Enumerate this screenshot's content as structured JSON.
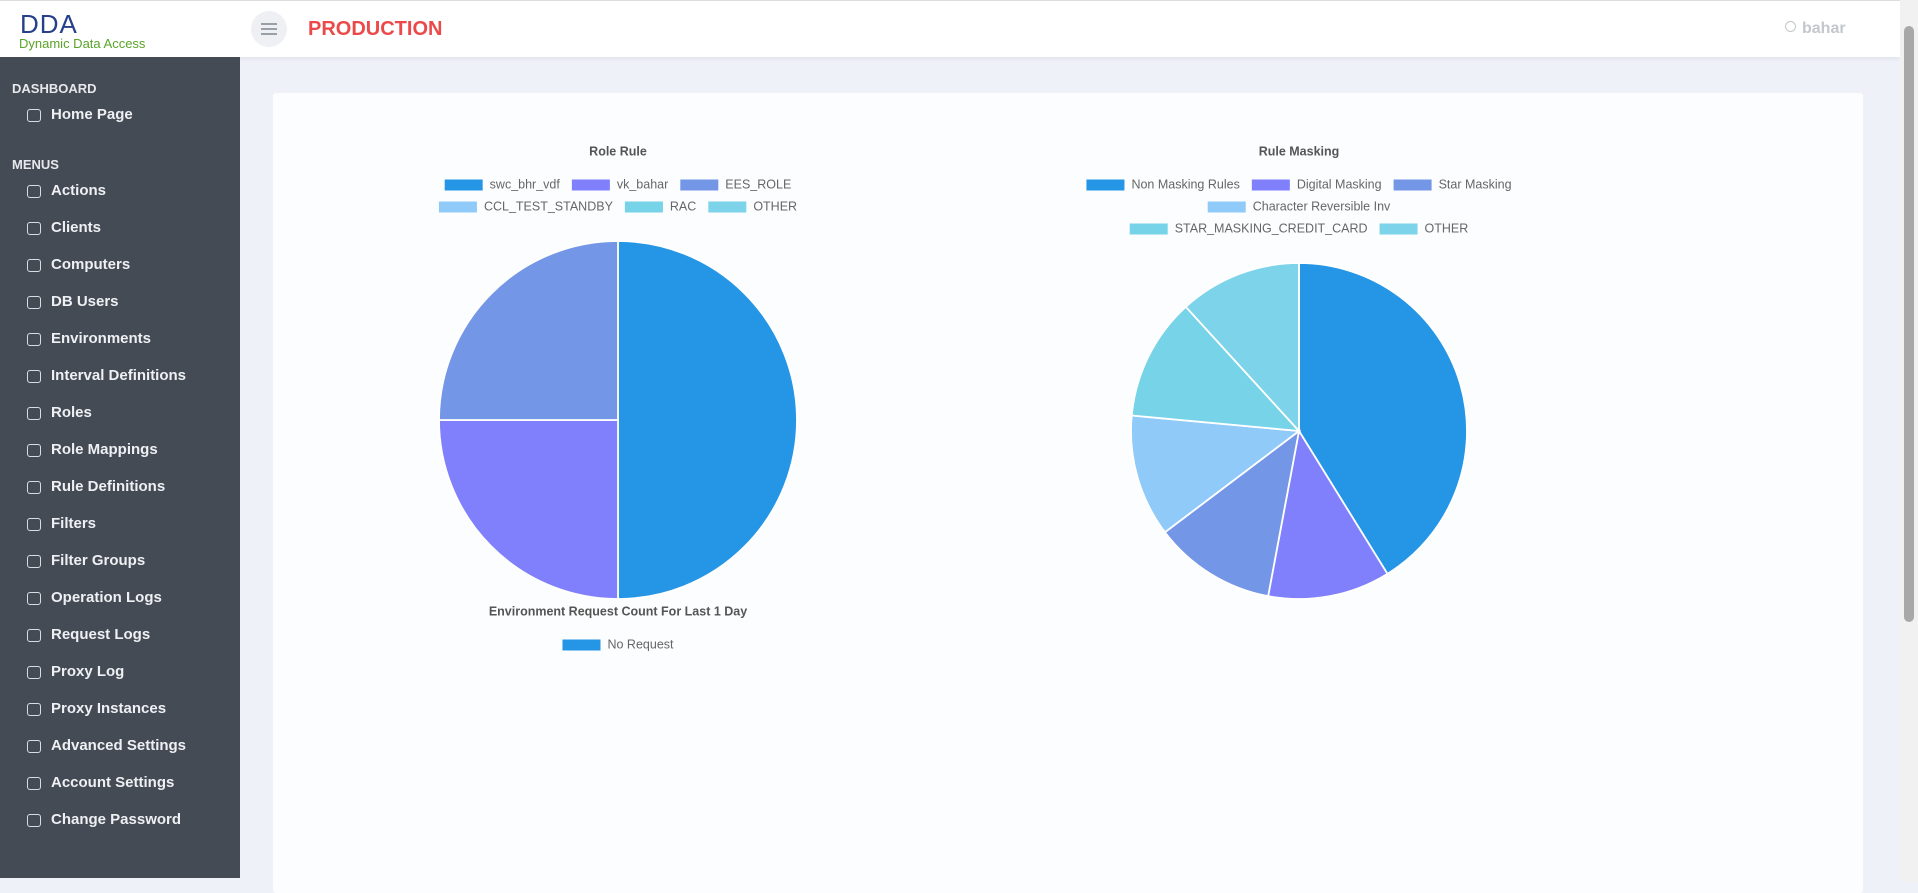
{
  "header": {
    "logo": "DDA",
    "logo_subtitle": "Dynamic Data Access",
    "environment": "PRODUCTION",
    "user": "bahar"
  },
  "sidebar": {
    "sections": [
      {
        "title": "DASHBOARD",
        "items": [
          "Home Page"
        ]
      },
      {
        "title": "MENUS",
        "items": [
          "Actions",
          "Clients",
          "Computers",
          "DB Users",
          "Environments",
          "Interval Definitions",
          "Roles",
          "Role Mappings",
          "Rule Definitions",
          "Filters",
          "Filter Groups",
          "Operation Logs",
          "Request Logs",
          "Proxy Log",
          "Proxy Instances",
          "Advanced Settings",
          "Account Settings",
          "Change Password"
        ]
      }
    ]
  },
  "chart_data": [
    {
      "type": "pie",
      "title": "Role Rule",
      "categories": [
        "swc_bhr_vdf",
        "vk_bahar",
        "EES_ROLE",
        "CCL_TEST_STANDBY",
        "RAC",
        "OTHER"
      ],
      "values": [
        2,
        1,
        1,
        0,
        0,
        0
      ],
      "colors": [
        "#2596e6",
        "#8080fd",
        "#7396e7",
        "#90caf9",
        "#76d3e8",
        "#7dd3ea"
      ]
    },
    {
      "type": "pie",
      "title": "Rule Masking",
      "categories": [
        "Non Masking Rules",
        "Digital Masking",
        "Star Masking",
        "Character Reversible Inv",
        "STAR_MASKING_CREDIT_CARD",
        "OTHER"
      ],
      "values": [
        7,
        2,
        2,
        2,
        2,
        2
      ],
      "colors": [
        "#2596e6",
        "#8080fd",
        "#7396e7",
        "#90caf9",
        "#76d3e8",
        "#7dd3ea"
      ]
    },
    {
      "type": "pie",
      "title": "Environment Request Count For Last 1 Day",
      "categories": [
        "No Request"
      ],
      "values": [
        0
      ],
      "colors": [
        "#2596e6"
      ]
    }
  ]
}
